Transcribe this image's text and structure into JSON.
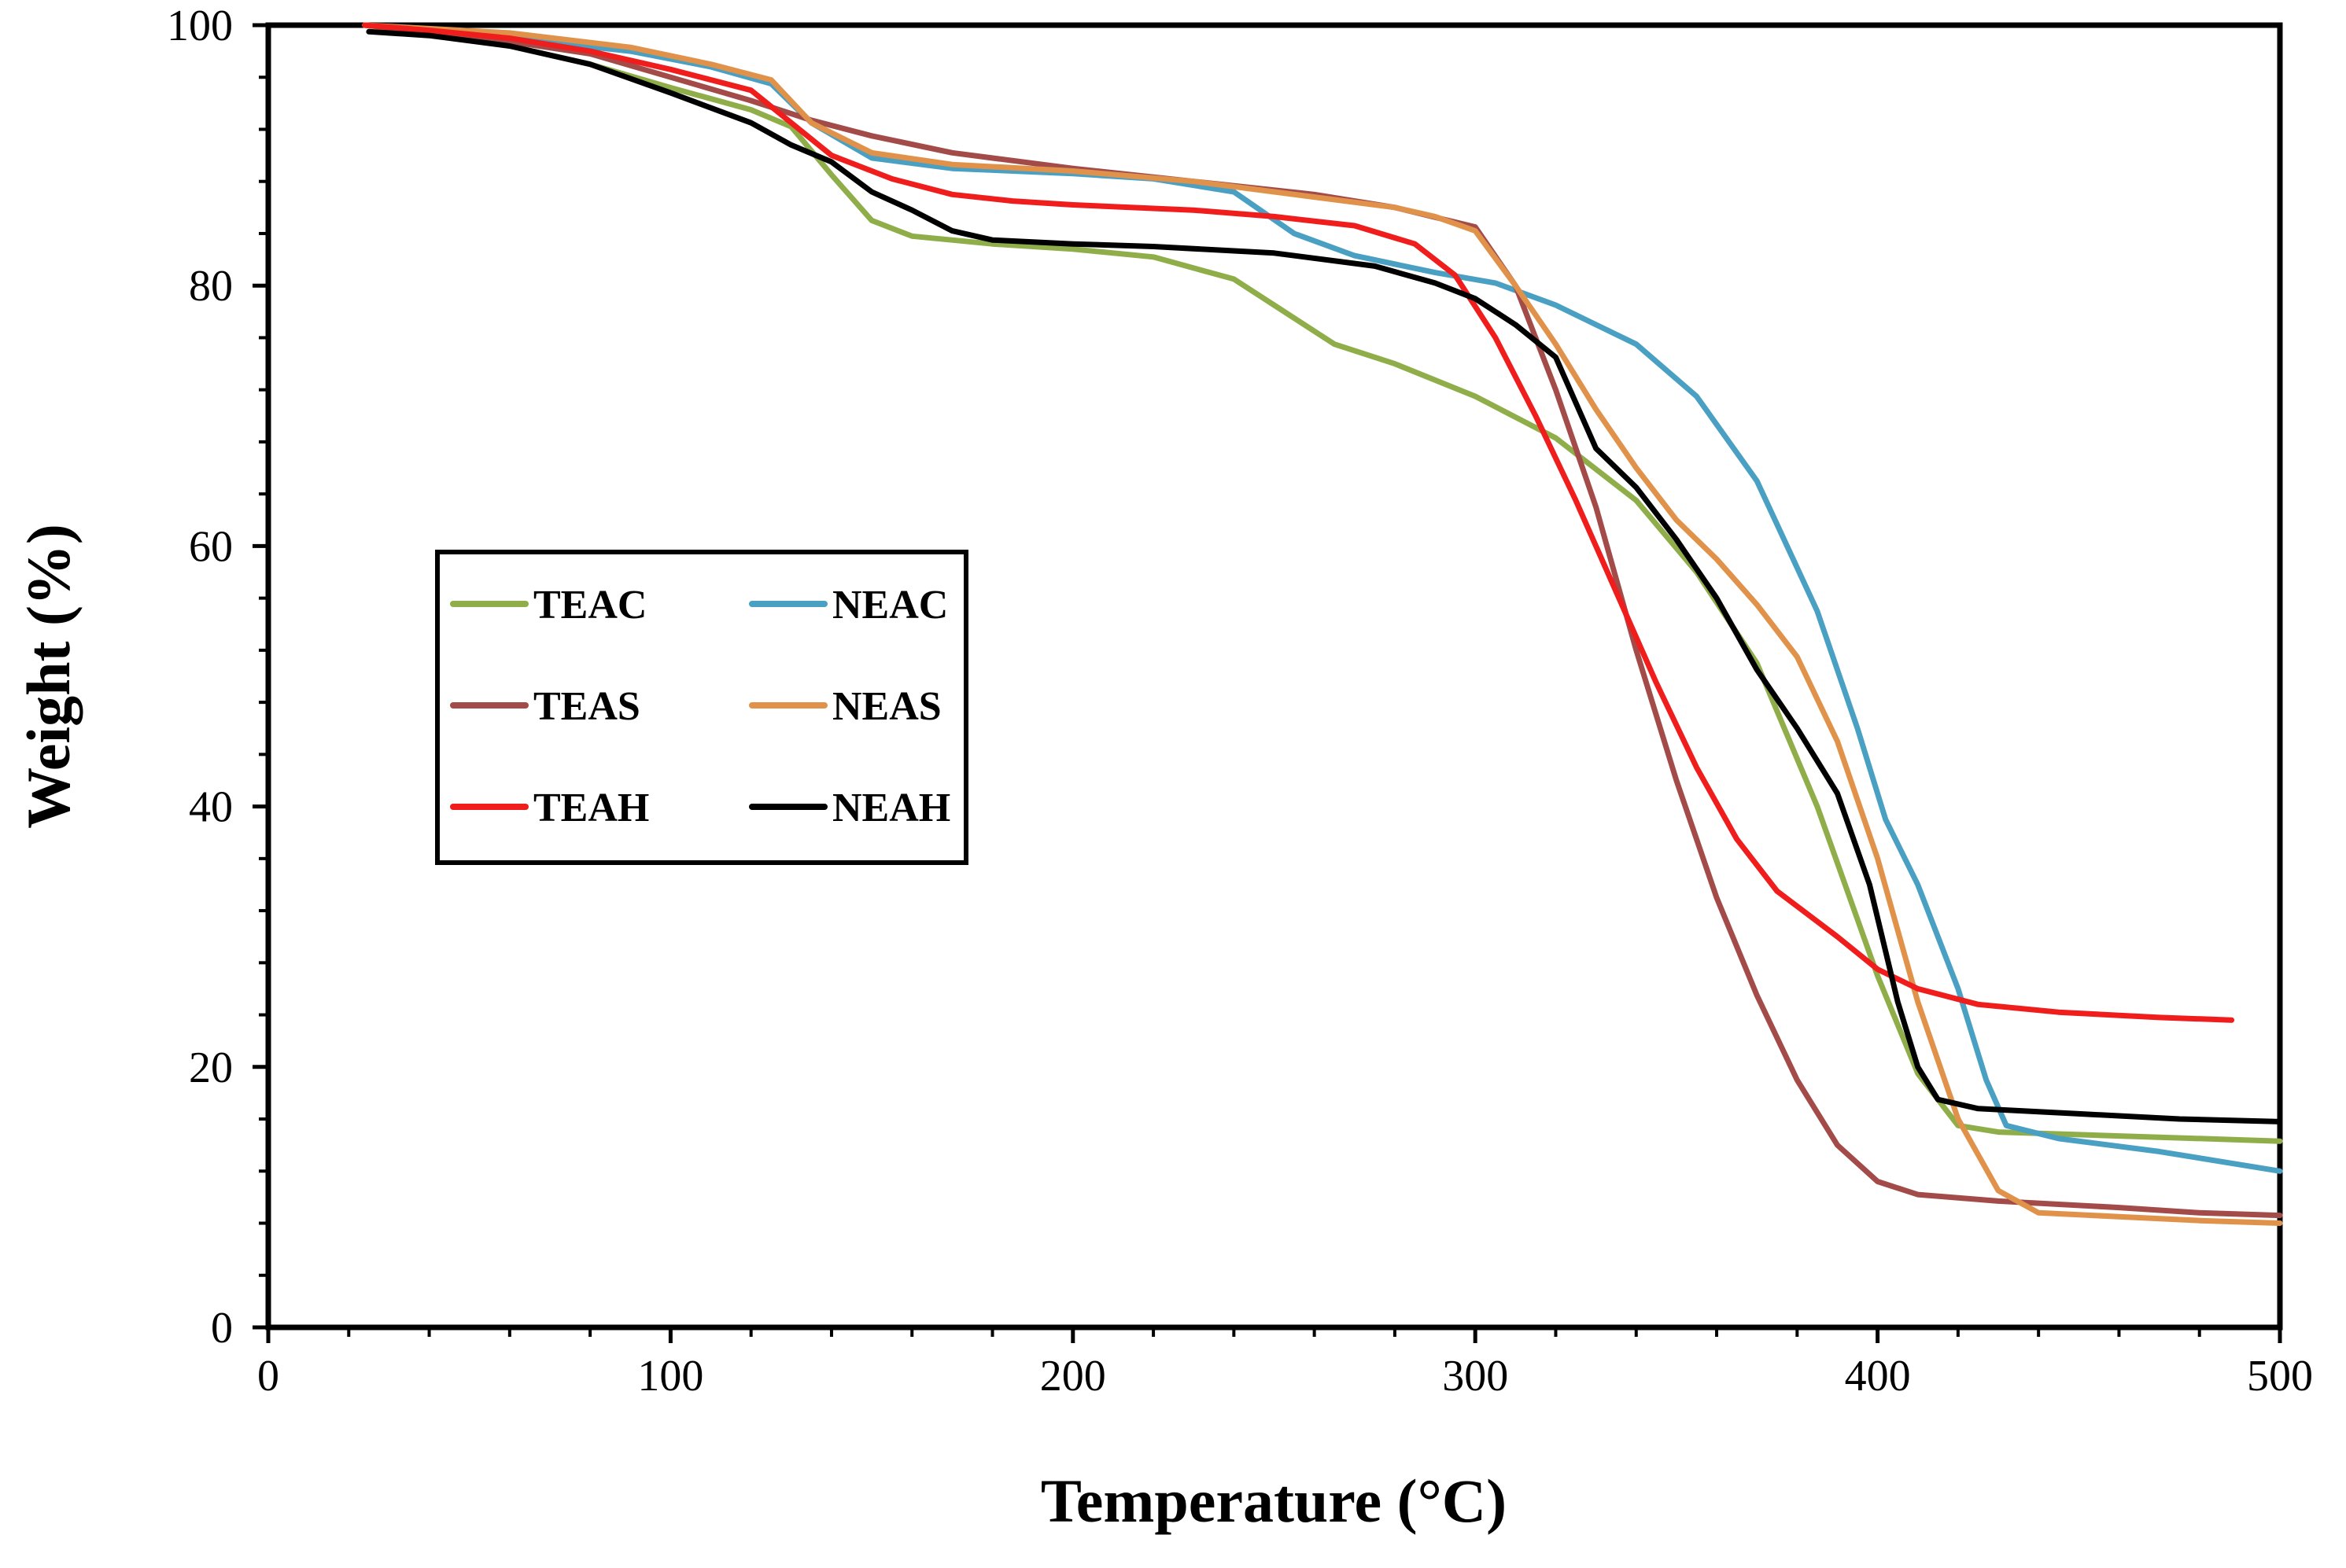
{
  "chart_data": {
    "type": "line",
    "title": "",
    "xlabel": "Temperature (°C)",
    "ylabel": "Weight (%)",
    "xlim": [
      0,
      500
    ],
    "ylim": [
      0,
      100
    ],
    "x_ticks": [
      0,
      100,
      200,
      300,
      400,
      500
    ],
    "y_ticks": [
      0,
      20,
      40,
      60,
      80,
      100
    ],
    "x_tick_labels": [
      "0",
      "100",
      "200",
      "300",
      "400",
      "500"
    ],
    "y_tick_labels": [
      "0",
      "20",
      "40",
      "60",
      "80",
      "100"
    ],
    "grid": false,
    "legend": {
      "placement": "center-left",
      "columns": 2
    },
    "series": [
      {
        "name": "TEAC",
        "color": "#8FAE4A",
        "points": [
          [
            24,
            100
          ],
          [
            40,
            99.4
          ],
          [
            60,
            98.4
          ],
          [
            80,
            97
          ],
          [
            100,
            95.2
          ],
          [
            120,
            93.5
          ],
          [
            130,
            92.2
          ],
          [
            140,
            88.5
          ],
          [
            150,
            85
          ],
          [
            160,
            83.8
          ],
          [
            180,
            83.2
          ],
          [
            200,
            82.8
          ],
          [
            220,
            82.2
          ],
          [
            240,
            80.5
          ],
          [
            250,
            78.5
          ],
          [
            265,
            75.5
          ],
          [
            280,
            74
          ],
          [
            300,
            71.5
          ],
          [
            320,
            68.3
          ],
          [
            340,
            63.5
          ],
          [
            355,
            58
          ],
          [
            370,
            51
          ],
          [
            385,
            40
          ],
          [
            400,
            27
          ],
          [
            410,
            19.5
          ],
          [
            420,
            15.5
          ],
          [
            430,
            15
          ],
          [
            450,
            14.8
          ],
          [
            470,
            14.6
          ],
          [
            500,
            14.3
          ]
        ]
      },
      {
        "name": "NEAC",
        "color": "#4AA0C3",
        "points": [
          [
            24,
            100
          ],
          [
            60,
            99
          ],
          [
            90,
            98
          ],
          [
            110,
            96.8
          ],
          [
            125,
            95.5
          ],
          [
            135,
            92.5
          ],
          [
            150,
            89.8
          ],
          [
            170,
            89
          ],
          [
            200,
            88.6
          ],
          [
            220,
            88.2
          ],
          [
            240,
            87.2
          ],
          [
            255,
            84
          ],
          [
            270,
            82.3
          ],
          [
            290,
            81
          ],
          [
            305,
            80.2
          ],
          [
            320,
            78.5
          ],
          [
            340,
            75.5
          ],
          [
            355,
            71.5
          ],
          [
            370,
            65
          ],
          [
            385,
            55
          ],
          [
            395,
            46
          ],
          [
            402,
            39
          ],
          [
            410,
            34
          ],
          [
            420,
            26
          ],
          [
            427,
            19
          ],
          [
            432,
            15.5
          ],
          [
            445,
            14.5
          ],
          [
            470,
            13.5
          ],
          [
            500,
            12
          ]
        ]
      },
      {
        "name": "TEAS",
        "color": "#A34B49",
        "points": [
          [
            24,
            100
          ],
          [
            50,
            99.2
          ],
          [
            80,
            97.8
          ],
          [
            100,
            96
          ],
          [
            120,
            94.2
          ],
          [
            135,
            92.7
          ],
          [
            150,
            91.5
          ],
          [
            170,
            90.2
          ],
          [
            200,
            89
          ],
          [
            230,
            88
          ],
          [
            260,
            87
          ],
          [
            280,
            86
          ],
          [
            300,
            84.5
          ],
          [
            310,
            80
          ],
          [
            320,
            72
          ],
          [
            330,
            63
          ],
          [
            340,
            52
          ],
          [
            350,
            42
          ],
          [
            360,
            33
          ],
          [
            370,
            25.5
          ],
          [
            380,
            19
          ],
          [
            390,
            14
          ],
          [
            400,
            11.2
          ],
          [
            410,
            10.2
          ],
          [
            430,
            9.7
          ],
          [
            460,
            9.2
          ],
          [
            480,
            8.8
          ],
          [
            500,
            8.6
          ]
        ]
      },
      {
        "name": "NEAS",
        "color": "#E0924A",
        "points": [
          [
            24,
            100
          ],
          [
            60,
            99.4
          ],
          [
            90,
            98.3
          ],
          [
            110,
            97
          ],
          [
            125,
            95.8
          ],
          [
            135,
            92.5
          ],
          [
            150,
            90.2
          ],
          [
            170,
            89.3
          ],
          [
            200,
            88.8
          ],
          [
            230,
            88
          ],
          [
            260,
            86.8
          ],
          [
            280,
            86
          ],
          [
            290,
            85.3
          ],
          [
            300,
            84.2
          ],
          [
            310,
            80
          ],
          [
            320,
            75.5
          ],
          [
            330,
            70.5
          ],
          [
            340,
            66
          ],
          [
            350,
            62
          ],
          [
            360,
            59
          ],
          [
            370,
            55.5
          ],
          [
            380,
            51.5
          ],
          [
            390,
            45
          ],
          [
            400,
            36
          ],
          [
            410,
            25
          ],
          [
            420,
            16
          ],
          [
            430,
            10.5
          ],
          [
            440,
            8.8
          ],
          [
            460,
            8.5
          ],
          [
            480,
            8.2
          ],
          [
            500,
            8
          ]
        ]
      },
      {
        "name": "TEAH",
        "color": "#F01D1D",
        "points": [
          [
            24,
            100
          ],
          [
            40,
            99.6
          ],
          [
            60,
            99
          ],
          [
            80,
            98
          ],
          [
            100,
            96.6
          ],
          [
            120,
            95
          ],
          [
            130,
            92.5
          ],
          [
            140,
            90
          ],
          [
            155,
            88.2
          ],
          [
            170,
            87
          ],
          [
            185,
            86.5
          ],
          [
            200,
            86.2
          ],
          [
            230,
            85.8
          ],
          [
            250,
            85.3
          ],
          [
            270,
            84.6
          ],
          [
            285,
            83.2
          ],
          [
            295,
            80.8
          ],
          [
            305,
            76
          ],
          [
            315,
            70
          ],
          [
            325,
            63.5
          ],
          [
            335,
            56.5
          ],
          [
            345,
            49.5
          ],
          [
            355,
            43
          ],
          [
            365,
            37.5
          ],
          [
            375,
            33.5
          ],
          [
            390,
            30
          ],
          [
            400,
            27.5
          ],
          [
            410,
            26
          ],
          [
            425,
            24.8
          ],
          [
            445,
            24.2
          ],
          [
            470,
            23.8
          ],
          [
            488,
            23.6
          ]
        ]
      },
      {
        "name": "NEAH",
        "color": "#000000",
        "points": [
          [
            25,
            99.5
          ],
          [
            40,
            99.2
          ],
          [
            60,
            98.4
          ],
          [
            80,
            97
          ],
          [
            100,
            94.8
          ],
          [
            120,
            92.5
          ],
          [
            130,
            90.8
          ],
          [
            140,
            89.5
          ],
          [
            150,
            87.2
          ],
          [
            160,
            85.8
          ],
          [
            170,
            84.2
          ],
          [
            180,
            83.5
          ],
          [
            200,
            83.2
          ],
          [
            220,
            83
          ],
          [
            250,
            82.5
          ],
          [
            275,
            81.5
          ],
          [
            290,
            80.2
          ],
          [
            300,
            79
          ],
          [
            310,
            77
          ],
          [
            320,
            74.5
          ],
          [
            325,
            71
          ],
          [
            330,
            67.5
          ],
          [
            340,
            64.5
          ],
          [
            350,
            60.5
          ],
          [
            360,
            56
          ],
          [
            370,
            50.5
          ],
          [
            380,
            46
          ],
          [
            390,
            41
          ],
          [
            398,
            34
          ],
          [
            405,
            25
          ],
          [
            410,
            20
          ],
          [
            415,
            17.5
          ],
          [
            425,
            16.8
          ],
          [
            450,
            16.4
          ],
          [
            475,
            16
          ],
          [
            500,
            15.8
          ]
        ]
      }
    ]
  }
}
